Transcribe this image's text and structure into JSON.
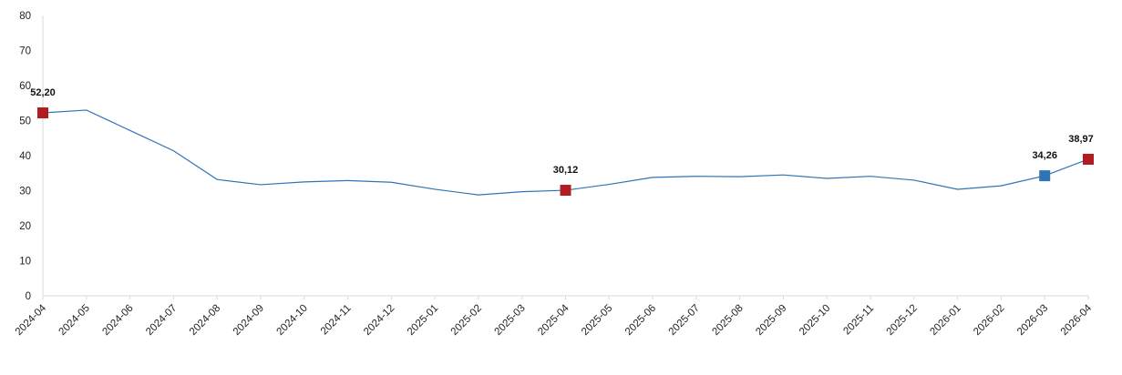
{
  "chart_data": {
    "type": "line",
    "x": [
      "2024-04",
      "2024-05",
      "2024-06",
      "2024-07",
      "2024-08",
      "2024-09",
      "2024-10",
      "2024-11",
      "2024-12",
      "2025-01",
      "2025-02",
      "2025-03",
      "2025-04",
      "2025-05",
      "2025-06",
      "2025-07",
      "2025-08",
      "2025-09",
      "2025-10",
      "2025-11",
      "2025-12",
      "2026-01",
      "2026-02",
      "2026-03",
      "2026-04"
    ],
    "series": [
      {
        "values": [
          52.2,
          53.0,
          47.2,
          41.4,
          33.2,
          31.7,
          32.5,
          32.9,
          32.4,
          30.4,
          28.8,
          29.7,
          30.12,
          31.8,
          33.8,
          34.1,
          34.0,
          34.5,
          33.5,
          34.1,
          33.0,
          30.4,
          31.4,
          34.26,
          38.97
        ],
        "color": "#2e75b6"
      }
    ],
    "highlighted_points": [
      {
        "x": "2024-04",
        "label": "52,20",
        "color": "#b01c20"
      },
      {
        "x": "2025-04",
        "label": "30,12",
        "color": "#b01c20"
      },
      {
        "x": "2026-03",
        "label": "34,26",
        "color": "#2e75b6"
      },
      {
        "x": "2026-04",
        "label": "38,97",
        "color": "#b01c20"
      }
    ],
    "y_ticks": [
      "0",
      "10",
      "20",
      "30",
      "40",
      "50",
      "60",
      "70",
      "80"
    ],
    "ylim": [
      0,
      80
    ],
    "grid": false,
    "legend": "none",
    "title": "",
    "xlabel": "",
    "ylabel": ""
  }
}
